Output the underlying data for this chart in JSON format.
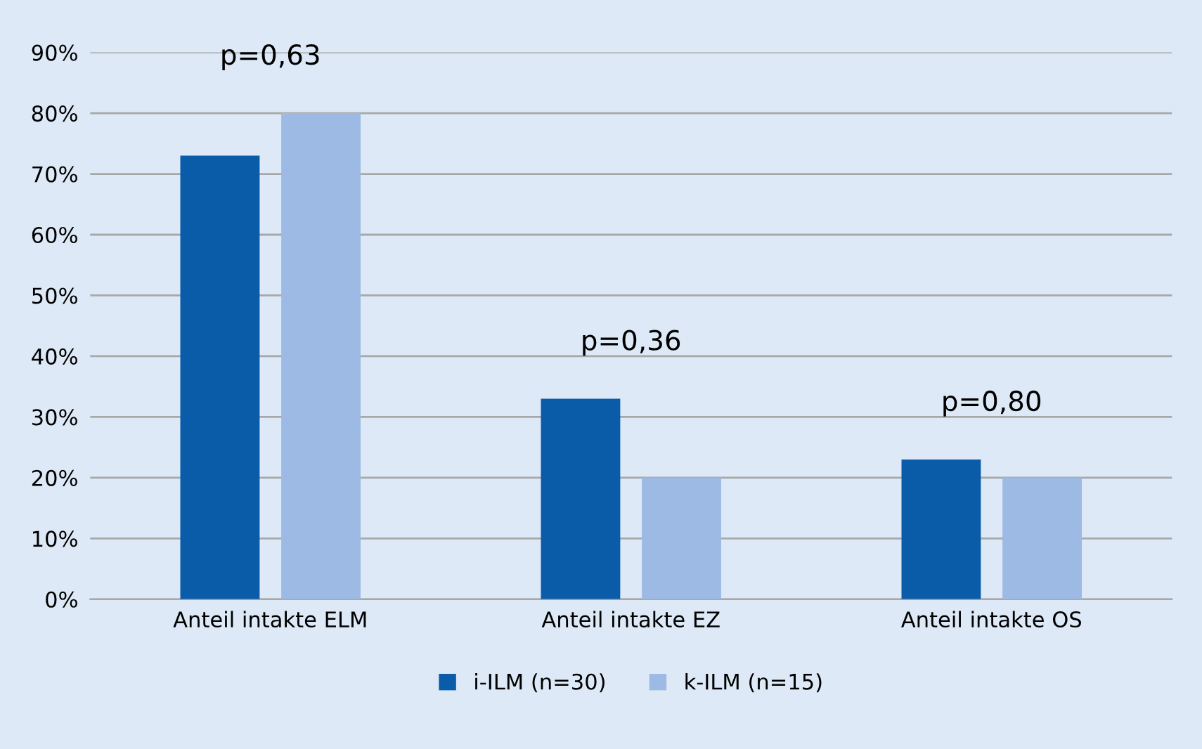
{
  "chart_data": {
    "type": "bar",
    "categories": [
      "Anteil intakte ELM",
      "Anteil intakte EZ",
      "Anteil intakte OS"
    ],
    "series": [
      {
        "name": "i-ILM (n=30)",
        "color": "#0b5ca8",
        "values": [
          73,
          33,
          23
        ]
      },
      {
        "name": "k-ILM (n=15)",
        "color": "#9dbae4",
        "values": [
          80,
          20,
          20
        ]
      }
    ],
    "ylim": [
      0,
      90
    ],
    "yticks": [
      {
        "value": 0,
        "label": "0%"
      },
      {
        "value": 10,
        "label": "10%"
      },
      {
        "value": 20,
        "label": "20%"
      },
      {
        "value": 30,
        "label": "30%"
      },
      {
        "value": 40,
        "label": "40%"
      },
      {
        "value": 50,
        "label": "50%"
      },
      {
        "value": 60,
        "label": "60%"
      },
      {
        "value": 70,
        "label": "70%"
      },
      {
        "value": 80,
        "label": "80%"
      },
      {
        "value": 90,
        "label": "90%"
      }
    ],
    "annotations": [
      "p=0,63",
      "p=0,36",
      "p=0,80"
    ],
    "grid": "y",
    "legend": "bottom"
  }
}
